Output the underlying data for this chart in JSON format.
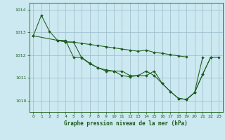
{
  "title": "Graphe pression niveau de la mer (hPa)",
  "background_color": "#cce8f0",
  "grid_color": "#99bbcc",
  "line_color": "#1a5c1a",
  "marker_color": "#1a5c1a",
  "xlim": [
    -0.5,
    23.5
  ],
  "ylim": [
    1009.5,
    1014.3
  ],
  "yticks": [
    1010,
    1011,
    1012,
    1013,
    1014
  ],
  "xticks": [
    0,
    1,
    2,
    3,
    4,
    5,
    6,
    7,
    8,
    9,
    10,
    11,
    12,
    13,
    14,
    15,
    16,
    17,
    18,
    19,
    20,
    21,
    22,
    23
  ],
  "series": [
    {
      "x": [
        0,
        1,
        2,
        3,
        4,
        5,
        6,
        7,
        8,
        9,
        10,
        11,
        12,
        13,
        14,
        15,
        16,
        17,
        18,
        19,
        20,
        21
      ],
      "y": [
        1012.85,
        1013.75,
        1013.05,
        1012.65,
        1012.65,
        1011.9,
        1011.9,
        1011.65,
        1011.45,
        1011.3,
        1011.3,
        1011.1,
        1011.05,
        1011.1,
        1011.3,
        1011.1,
        1010.75,
        1010.4,
        1010.1,
        1010.05,
        1010.35,
        1011.9
      ]
    },
    {
      "x": [
        0,
        3,
        4,
        5,
        6,
        7,
        8,
        9,
        10,
        11,
        12,
        13,
        14,
        15,
        16,
        17,
        18,
        19
      ],
      "y": [
        1012.85,
        1012.65,
        1012.58,
        1012.57,
        1012.52,
        1012.47,
        1012.42,
        1012.37,
        1012.32,
        1012.27,
        1012.22,
        1012.17,
        1012.22,
        1012.12,
        1012.08,
        1012.02,
        1011.97,
        1011.92
      ]
    },
    {
      "x": [
        3,
        4,
        5,
        6,
        7,
        8,
        9,
        10,
        11,
        12,
        13,
        14,
        15,
        16,
        17,
        18,
        19,
        20,
        21,
        22
      ],
      "y": [
        1012.65,
        1012.58,
        1012.57,
        1011.88,
        1011.62,
        1011.45,
        1011.35,
        1011.3,
        1011.3,
        1011.1,
        1011.1,
        1011.1,
        1011.3,
        1010.75,
        1010.4,
        1010.1,
        1010.05,
        1010.35,
        1011.15,
        1011.9
      ]
    },
    {
      "x": [
        18,
        19,
        20,
        21,
        22,
        23
      ],
      "y": [
        1010.1,
        1010.05,
        1010.35,
        1011.15,
        1011.9,
        1011.9
      ]
    }
  ]
}
